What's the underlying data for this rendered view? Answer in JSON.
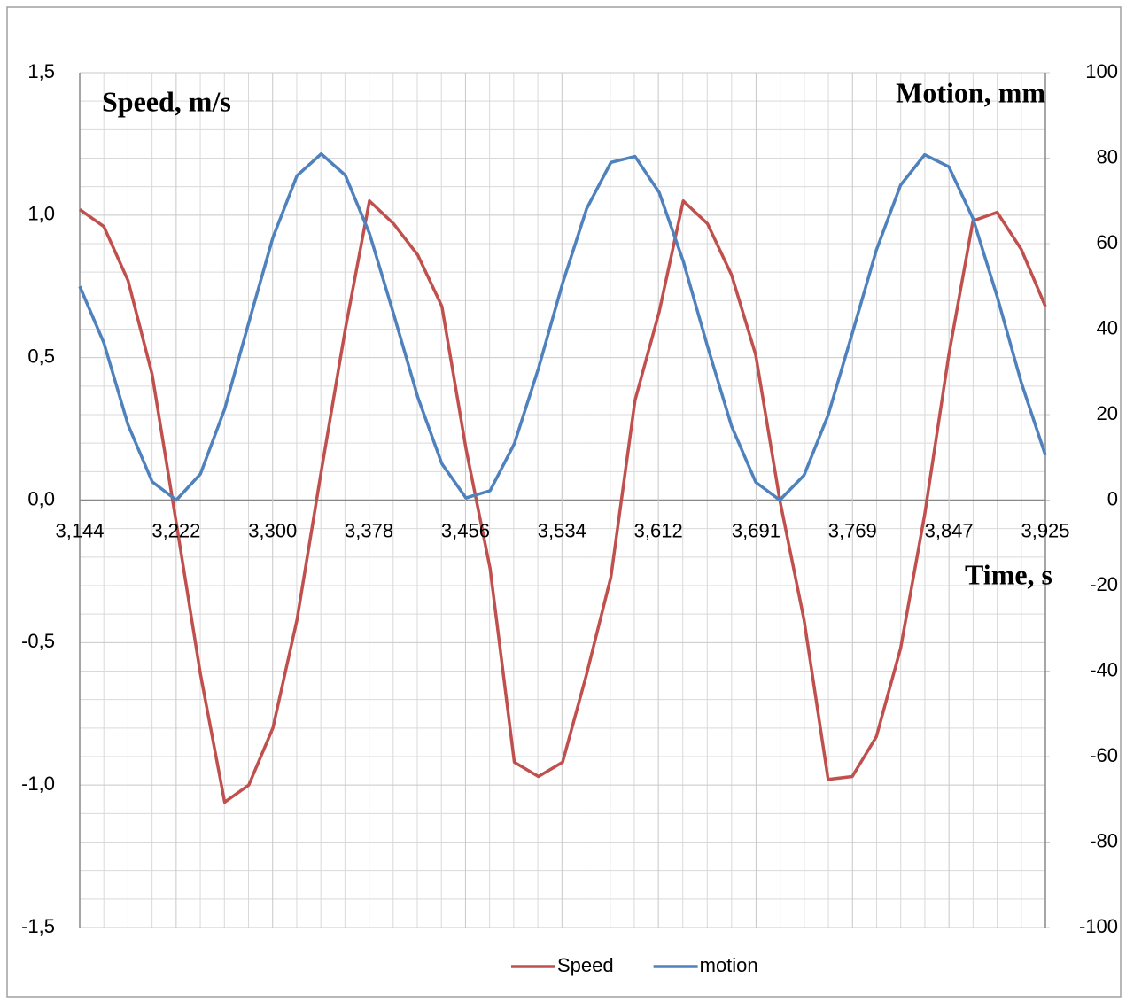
{
  "chart_data": {
    "type": "line",
    "x_label": "Time, s",
    "y_label": "Speed, m/s",
    "y2_label": "Motion, mm",
    "x": [
      3.144,
      3.1635,
      3.1831,
      3.2026,
      3.2221,
      3.2416,
      3.2612,
      3.2807,
      3.3002,
      3.3197,
      3.3393,
      3.3588,
      3.3783,
      3.3978,
      3.4174,
      3.4369,
      3.4564,
      3.4759,
      3.4955,
      3.515,
      3.5345,
      3.554,
      3.5736,
      3.5931,
      3.6126,
      3.6321,
      3.6517,
      3.6712,
      3.6907,
      3.7102,
      3.7298,
      3.7493,
      3.7688,
      3.7883,
      3.8079,
      3.8274,
      3.8469,
      3.8664,
      3.886,
      3.9055,
      3.925
    ],
    "series": [
      {
        "name": "Speed",
        "color": "#c0504d",
        "axis": "y",
        "values": [
          1.02,
          0.96,
          0.77,
          0.44,
          -0.08,
          -0.61,
          -1.06,
          -1.0,
          -0.8,
          -0.42,
          0.1,
          0.6,
          1.05,
          0.97,
          0.86,
          0.68,
          0.18,
          -0.24,
          -0.92,
          -0.97,
          -0.92,
          -0.61,
          -0.27,
          0.35,
          0.66,
          1.05,
          0.97,
          0.79,
          0.51,
          0.0,
          -0.42,
          -0.98,
          -0.97,
          -0.83,
          -0.52,
          -0.05,
          0.51,
          0.98,
          1.01,
          0.88,
          0.68
        ]
      },
      {
        "name": "motion",
        "color": "#4f81bd",
        "axis": "y2",
        "values": [
          50,
          36.8,
          17.6,
          4.3,
          0,
          6.1,
          21.3,
          41.5,
          61.4,
          75.9,
          81,
          76.0,
          62.4,
          43.6,
          24.1,
          8.5,
          0.5,
          2.2,
          13.2,
          30.8,
          50.7,
          68.2,
          79.0,
          80.4,
          72.0,
          55.9,
          36.0,
          17.3,
          4.2,
          0,
          5.8,
          19.9,
          39.0,
          58.5,
          73.7,
          80.8,
          78.0,
          65.9,
          47.6,
          27.5,
          10.5
        ]
      }
    ],
    "xlim": [
      3.144,
      3.925
    ],
    "xticks": [
      {
        "value": 3.144,
        "label": "3,144"
      },
      {
        "value": 3.222,
        "label": "3,222"
      },
      {
        "value": 3.3,
        "label": "3,300"
      },
      {
        "value": 3.378,
        "label": "3,378"
      },
      {
        "value": 3.456,
        "label": "3,456"
      },
      {
        "value": 3.534,
        "label": "3,534"
      },
      {
        "value": 3.612,
        "label": "3,612"
      },
      {
        "value": 3.691,
        "label": "3,691"
      },
      {
        "value": 3.769,
        "label": "3,769"
      },
      {
        "value": 3.847,
        "label": "3,847"
      },
      {
        "value": 3.925,
        "label": "3,925"
      }
    ],
    "ylim": [
      -1.5,
      1.5
    ],
    "yticks": [
      {
        "value": -1.5,
        "label": "-1,5"
      },
      {
        "value": -1.0,
        "label": "-1,0"
      },
      {
        "value": -0.5,
        "label": "-0,5"
      },
      {
        "value": 0,
        "label": "0,0"
      },
      {
        "value": 0.5,
        "label": "0,5"
      },
      {
        "value": 1.0,
        "label": "1,0"
      },
      {
        "value": 1.5,
        "label": "1,5"
      }
    ],
    "y2lim": [
      -100,
      100
    ],
    "y2ticks": [
      -100,
      -80,
      -60,
      -40,
      -20,
      0,
      20,
      40,
      60,
      80,
      100
    ],
    "grid": true,
    "legend": "bottom"
  }
}
